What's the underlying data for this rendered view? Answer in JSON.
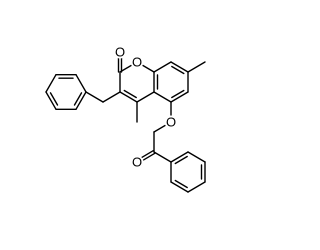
{
  "atoms": [
    {
      "label": "O"
    },
    {
      "label": "O"
    },
    {
      "label": "O"
    },
    {
      "label": "O"
    }
  ]
}
